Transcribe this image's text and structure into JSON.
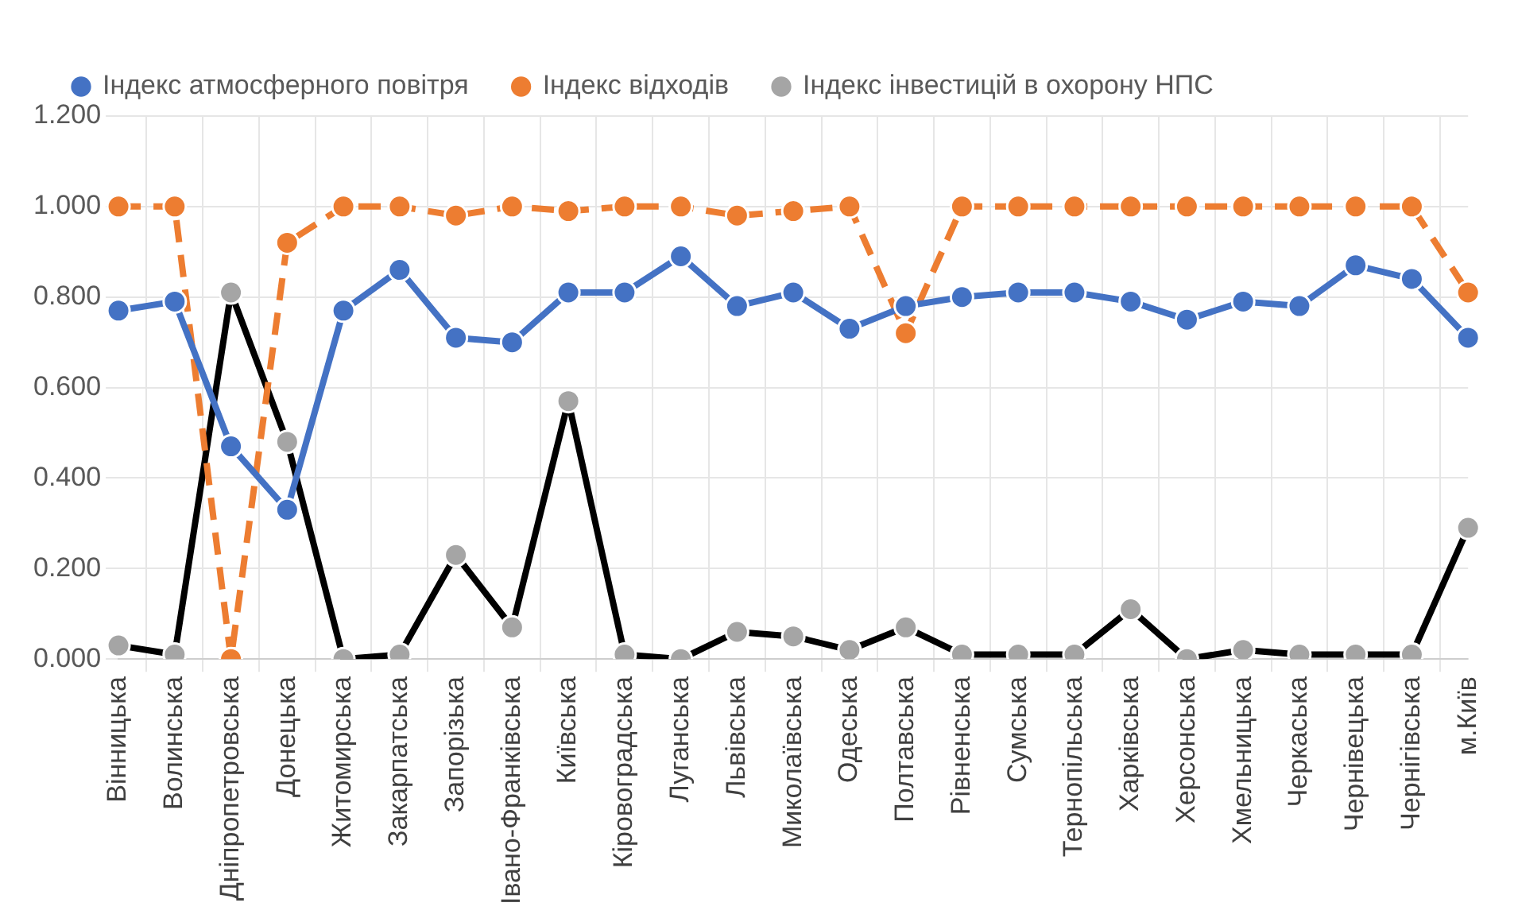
{
  "chart_data": {
    "type": "line",
    "categories": [
      "Вінницька",
      "Волинська",
      "Дніпропетровська",
      "Донецька",
      "Житомирська",
      "Закарпатська",
      "Запорізька",
      "Івано-Франківська",
      "Київська",
      "Кіровоградська",
      "Луганська",
      "Львівська",
      "Миколаївська",
      "Одеська",
      "Полтавська",
      "Рівненська",
      "Сумська",
      "Тернопільська",
      "Харківська",
      "Херсонська",
      "Хмельницька",
      "Черкаська",
      "Чернівецька",
      "Чернігівська",
      "м.Київ"
    ],
    "series": [
      {
        "name": "Індекс атмосферного повітря",
        "color": "#4472c4",
        "line_style": "solid",
        "values": [
          0.77,
          0.79,
          0.47,
          0.33,
          0.77,
          0.86,
          0.71,
          0.7,
          0.81,
          0.81,
          0.89,
          0.78,
          0.81,
          0.73,
          0.78,
          0.8,
          0.81,
          0.81,
          0.79,
          0.75,
          0.79,
          0.78,
          0.87,
          0.84,
          0.71
        ]
      },
      {
        "name": "Індекс відходів",
        "color": "#ed7d31",
        "line_style": "dashed",
        "values": [
          1.0,
          1.0,
          0.0,
          0.92,
          1.0,
          1.0,
          0.98,
          1.0,
          0.99,
          1.0,
          1.0,
          0.98,
          0.99,
          1.0,
          0.72,
          1.0,
          1.0,
          1.0,
          1.0,
          1.0,
          1.0,
          1.0,
          1.0,
          1.0,
          0.81
        ]
      },
      {
        "name": "Індекс інвестицій в охорону НПС",
        "color": "#000000",
        "line_style": "solid",
        "values": [
          0.03,
          0.01,
          0.81,
          0.48,
          0.0,
          0.01,
          0.23,
          0.07,
          0.57,
          0.01,
          0.0,
          0.06,
          0.05,
          0.02,
          0.07,
          0.01,
          0.01,
          0.01,
          0.11,
          0.0,
          0.02,
          0.01,
          0.01,
          0.01,
          0.29
        ]
      }
    ],
    "ylim": [
      0,
      1.2
    ],
    "yticks": [
      {
        "value": 0,
        "label": "0.000"
      },
      {
        "value": 0.2,
        "label": "0.200"
      },
      {
        "value": 0.4,
        "label": "0.400"
      },
      {
        "value": 0.6,
        "label": "0.600"
      },
      {
        "value": 0.8,
        "label": "0.800"
      },
      {
        "value": 1,
        "label": "1.000"
      },
      {
        "value": 1.2,
        "label": "1.200"
      }
    ],
    "grid": true,
    "legend": "top",
    "marker": "circle"
  }
}
